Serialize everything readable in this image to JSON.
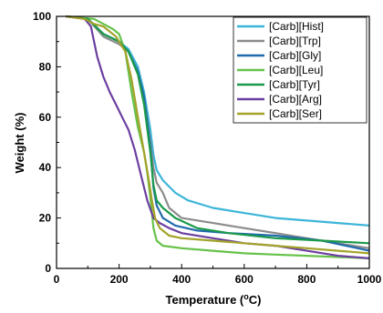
{
  "chart_data": {
    "type": "line",
    "title": "",
    "xlabel": "Temperature (°C)",
    "xlabel_main": "Temperature (",
    "xlabel_sup": "o",
    "xlabel_tail": "C)",
    "ylabel": "Weight (%)",
    "xlim": [
      0,
      1000
    ],
    "ylim": [
      0,
      100
    ],
    "xticks": [
      0,
      200,
      400,
      600,
      800,
      1000
    ],
    "yticks": [
      0,
      20,
      40,
      60,
      80,
      100
    ],
    "grid": false,
    "legend_position": "top-right",
    "series": [
      {
        "name": "[Carb][Hist]",
        "color": "#3bb5d8",
        "x": [
          30,
          100,
          150,
          200,
          230,
          260,
          280,
          300,
          310,
          320,
          340,
          380,
          420,
          500,
          600,
          700,
          800,
          900,
          1000
        ],
        "y": [
          100,
          99,
          93,
          90,
          87,
          80,
          70,
          55,
          45,
          39,
          35,
          30,
          27,
          24,
          22,
          20,
          19,
          18,
          17
        ]
      },
      {
        "name": "[Carb][Trp]",
        "color": "#8c8c8c",
        "x": [
          30,
          100,
          150,
          200,
          230,
          260,
          280,
          300,
          310,
          320,
          340,
          360,
          400,
          500,
          600,
          700,
          800,
          900,
          1000
        ],
        "y": [
          100,
          99,
          92,
          89,
          86,
          78,
          68,
          50,
          40,
          34,
          30,
          24,
          20,
          18,
          16,
          14,
          12,
          10,
          8
        ]
      },
      {
        "name": "[Carb][Gly]",
        "color": "#1f6aab",
        "x": [
          30,
          100,
          150,
          200,
          230,
          260,
          280,
          300,
          310,
          320,
          340,
          380,
          450,
          550,
          700,
          850,
          1000
        ],
        "y": [
          100,
          99,
          93,
          90,
          86,
          78,
          68,
          48,
          32,
          25,
          20,
          17,
          15,
          14,
          13,
          11,
          7
        ]
      },
      {
        "name": "[Carb][Leu]",
        "color": "#66c24a",
        "x": [
          30,
          120,
          150,
          180,
          200,
          220,
          240,
          260,
          280,
          290,
          300,
          310,
          320,
          340,
          400,
          500,
          600,
          700,
          800,
          900,
          1000
        ],
        "y": [
          100,
          99,
          97,
          95,
          93,
          86,
          70,
          56,
          46,
          38,
          28,
          16,
          11,
          9,
          8,
          7,
          6,
          5.5,
          5,
          4.5,
          4
        ]
      },
      {
        "name": "[Carb][Tyr]",
        "color": "#1a9a4a",
        "x": [
          30,
          100,
          150,
          200,
          230,
          260,
          280,
          300,
          310,
          320,
          340,
          380,
          450,
          550,
          700,
          850,
          1000
        ],
        "y": [
          100,
          99,
          93,
          90,
          86,
          77,
          65,
          46,
          33,
          27,
          24,
          20,
          16,
          14,
          12,
          11,
          10
        ]
      },
      {
        "name": "[Carb][Arg]",
        "color": "#6b3fa0",
        "x": [
          30,
          90,
          110,
          130,
          150,
          170,
          190,
          210,
          230,
          250,
          270,
          290,
          310,
          330,
          360,
          400,
          500,
          600,
          700,
          800,
          900,
          1000
        ],
        "y": [
          100,
          99,
          96,
          84,
          76,
          70,
          65,
          60,
          55,
          47,
          37,
          27,
          20,
          18,
          16,
          14,
          12,
          10,
          9,
          7,
          5,
          4
        ]
      },
      {
        "name": "[Carb][Ser]",
        "color": "#a3a32a",
        "x": [
          30,
          90,
          120,
          150,
          190,
          220,
          240,
          260,
          280,
          295,
          305,
          315,
          330,
          360,
          400,
          500,
          600,
          700,
          800,
          900,
          1000
        ],
        "y": [
          100,
          99,
          97,
          96,
          92,
          86,
          75,
          60,
          46,
          35,
          27,
          20,
          16,
          13,
          12,
          11,
          10,
          9,
          8,
          7,
          6
        ]
      }
    ]
  }
}
